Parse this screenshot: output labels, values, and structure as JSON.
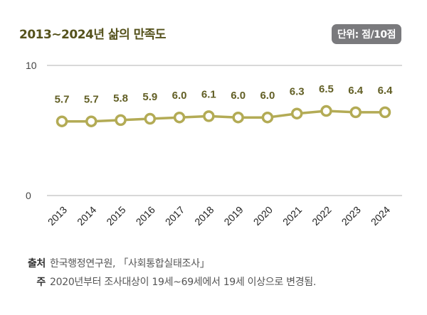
{
  "header": {
    "title": "2013~2024년 삶의 만족도",
    "unit_badge": "단위: 점/10점"
  },
  "chart_data": {
    "type": "line",
    "title": "2013~2024년 삶의 만족도",
    "unit": "단위: 점/10점",
    "categories": [
      "2013",
      "2014",
      "2015",
      "2016",
      "2017",
      "2018",
      "2019",
      "2020",
      "2021",
      "2022",
      "2023",
      "2024"
    ],
    "values": [
      5.7,
      5.7,
      5.8,
      5.9,
      6.0,
      6.1,
      6.0,
      6.0,
      6.3,
      6.5,
      6.4,
      6.4
    ],
    "value_labels": [
      "5.7",
      "5.7",
      "5.8",
      "5.9",
      "6.0",
      "6.1",
      "6.0",
      "6.0",
      "6.3",
      "6.5",
      "6.4",
      "6.4"
    ],
    "ylim": [
      0,
      10
    ],
    "yticks": [
      "0",
      "10"
    ],
    "grid": true,
    "colors": {
      "line": "#b3ab55",
      "label": "#625f25",
      "grid": "#cccccc"
    }
  },
  "footer": {
    "source_label": "출처",
    "source_text": "한국행정연구원, 「사회통합실태조사」",
    "note_label": "주",
    "note_text": "2020년부터 조사대상이 19세~69세에서 19세 이상으로 변경됨."
  }
}
